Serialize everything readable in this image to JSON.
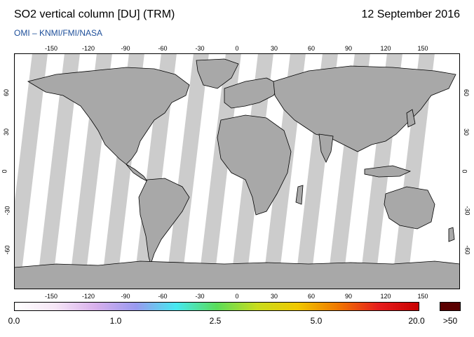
{
  "header": {
    "title": "SO2 vertical column [DU] (TRM)",
    "date": "12 September 2016",
    "credit": "OMI  –  KNMI/FMI/NASA"
  },
  "map": {
    "lon_ticks": [
      "-150",
      "-120",
      "-90",
      "-60",
      "-30",
      "0",
      "30",
      "60",
      "90",
      "120",
      "150"
    ],
    "lat_ticks": [
      "60",
      "30",
      "0",
      "-30",
      "-60"
    ],
    "colors": {
      "land": "#a8a8a8",
      "swath_gap": "#cccccc",
      "coast": "#000000"
    }
  },
  "colorbar": {
    "labels": [
      "0.0",
      "1.0",
      "2.5",
      "5.0",
      "20.0"
    ],
    "over_label": ">50",
    "over_color": "#5a0000",
    "stops": [
      "#ffffff",
      "#f6e6f6",
      "#d8b0ec",
      "#9a9af0",
      "#46e8f0",
      "#5adc5a",
      "#c8dc1e",
      "#f0c800",
      "#f07800",
      "#e61e1e",
      "#c80000"
    ]
  }
}
